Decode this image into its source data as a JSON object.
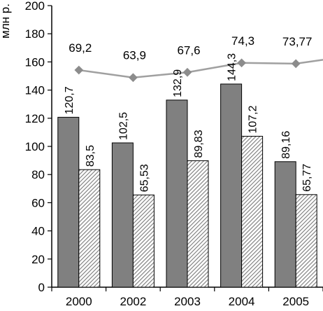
{
  "chart_data": {
    "type": "bar",
    "ylabel": "млн р.",
    "ylim": [
      0,
      200
    ],
    "yticks": [
      0,
      20,
      40,
      60,
      80,
      100,
      120,
      140,
      160,
      180,
      200
    ],
    "categories": [
      "2000",
      "2002",
      "2003",
      "2004",
      "2005"
    ],
    "series": [
      {
        "type": "bar",
        "values": [
          120.7,
          102.5,
          132.9,
          144.3,
          89.16
        ],
        "labels": [
          "120,7",
          "102,5",
          "132,9",
          "144,3",
          "89,16"
        ],
        "color": "#808080"
      },
      {
        "type": "bar",
        "pattern": "diagonal-hatch",
        "values": [
          83.5,
          65.53,
          89.83,
          107.2,
          65.77
        ],
        "labels": [
          "83,5",
          "65,53",
          "89,83",
          "107,2",
          "65,77"
        ],
        "color": "#9a9a9a"
      },
      {
        "type": "line",
        "values": [
          69.2,
          63.9,
          67.6,
          74.3,
          73.77
        ],
        "labels": [
          "69,2",
          "63,9",
          "67,6",
          "74,3",
          "73,77"
        ],
        "color": "#a0a0a0"
      }
    ],
    "grid": false,
    "legend": "none"
  }
}
